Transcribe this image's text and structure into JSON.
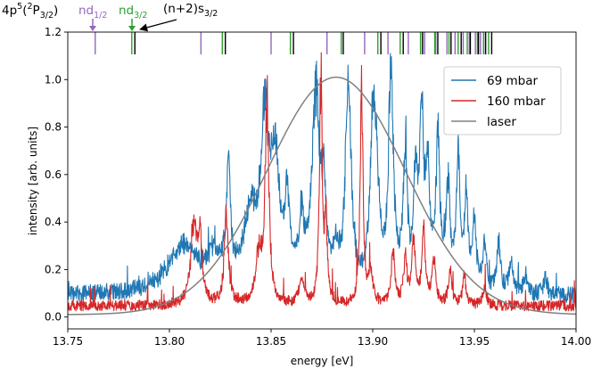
{
  "chart_data": {
    "type": "line",
    "title": "",
    "xlabel": "energy [eV]",
    "ylabel": "intensity [arb. units]",
    "xlim": [
      13.75,
      14.0
    ],
    "ylim": [
      -0.05,
      1.2
    ],
    "xticks": [
      "13.75",
      "13.80",
      "13.85",
      "13.90",
      "13.95",
      "14.00"
    ],
    "yticks": [
      "0.0",
      "0.2",
      "0.4",
      "0.6",
      "0.8",
      "1.0",
      "1.2"
    ],
    "legend_position": "top-right",
    "series": [
      {
        "name": "69 mbar",
        "color": "#1f77b4",
        "baseline": 0.08,
        "noise": 0.035,
        "peaks": [
          [
            13.807,
            0.2,
            0.009
          ],
          [
            13.822,
            0.12,
            0.004
          ],
          [
            13.829,
            0.47,
            0.0012
          ],
          [
            13.84,
            0.32,
            0.004
          ],
          [
            13.847,
            0.62,
            0.0022
          ],
          [
            13.852,
            0.5,
            0.0025
          ],
          [
            13.858,
            0.32,
            0.0015
          ],
          [
            13.865,
            0.25,
            0.0015
          ],
          [
            13.872,
            0.82,
            0.0022
          ],
          [
            13.876,
            0.32,
            0.0013
          ],
          [
            13.882,
            0.12,
            0.002
          ],
          [
            13.888,
            0.86,
            0.0016
          ],
          [
            13.9,
            0.65,
            0.0016
          ],
          [
            13.902,
            0.35,
            0.0015
          ],
          [
            13.909,
            0.92,
            0.0014
          ],
          [
            13.916,
            0.55,
            0.0012
          ],
          [
            13.921,
            0.38,
            0.0012
          ],
          [
            13.924,
            0.7,
            0.0013
          ],
          [
            13.927,
            0.42,
            0.0012
          ],
          [
            13.932,
            0.6,
            0.0012
          ],
          [
            13.937,
            0.42,
            0.0012
          ],
          [
            13.942,
            0.55,
            0.0011
          ],
          [
            13.946,
            0.36,
            0.0011
          ],
          [
            13.95,
            0.28,
            0.0011
          ],
          [
            13.955,
            0.2,
            0.0011
          ],
          [
            13.962,
            0.2,
            0.0011
          ],
          [
            13.968,
            0.12,
            0.0011
          ],
          [
            13.975,
            0.08,
            0.0011
          ],
          [
            13.985,
            0.06,
            0.0011
          ]
        ]
      },
      {
        "name": "160 mbar",
        "color": "#d62728",
        "baseline": 0.04,
        "noise": 0.022,
        "peaks": [
          [
            13.812,
            0.33,
            0.0018
          ],
          [
            13.815,
            0.25,
            0.0012
          ],
          [
            13.828,
            0.37,
            0.0012
          ],
          [
            13.844,
            0.2,
            0.002
          ],
          [
            13.848,
            0.82,
            0.0011
          ],
          [
            13.865,
            0.1,
            0.0015
          ],
          [
            13.8745,
            0.97,
            0.0008
          ],
          [
            13.877,
            0.3,
            0.0008
          ],
          [
            13.8945,
            0.96,
            0.0008
          ],
          [
            13.899,
            0.14,
            0.0012
          ],
          [
            13.91,
            0.23,
            0.001
          ],
          [
            13.916,
            0.18,
            0.001
          ],
          [
            13.92,
            0.28,
            0.001
          ],
          [
            13.925,
            0.32,
            0.001
          ],
          [
            13.93,
            0.2,
            0.001
          ],
          [
            13.938,
            0.14,
            0.001
          ],
          [
            13.945,
            0.12,
            0.001
          ],
          [
            13.955,
            0.08,
            0.001
          ]
        ]
      },
      {
        "name": "laser",
        "color": "#808080",
        "function": "gaussian",
        "center": 13.882,
        "amplitude": 1.0,
        "sigma": 0.034,
        "offset": 0.01
      }
    ],
    "top_markers": {
      "nd1_2": {
        "color": "#9467bd",
        "positions": [
          13.7635,
          13.8155,
          13.85,
          13.8775,
          13.896,
          13.9075,
          13.9175,
          13.9255,
          13.931,
          13.9365,
          13.9405,
          13.9445,
          13.9475,
          13.9505,
          13.953,
          13.9555
        ]
      },
      "nd3_2": {
        "color": "#2ca02c",
        "positions": [
          13.7815,
          13.826,
          13.8595,
          13.8845,
          13.9025,
          13.9135,
          13.9235,
          13.9305,
          13.9375,
          13.942,
          13.9465,
          13.9515,
          13.9545,
          13.957
        ]
      },
      "ns3_2": {
        "color": "#000000",
        "positions": [
          13.783,
          13.8275,
          13.861,
          13.8855,
          13.904,
          13.915,
          13.9245,
          13.932,
          13.9385,
          13.9435,
          13.948,
          13.952,
          13.9555,
          13.9585
        ]
      }
    },
    "annotations": {
      "edge_label": {
        "base": "4p",
        "sup1": "5",
        "open": "(",
        "sup2": "2",
        "term": "P",
        "sub": "3/2",
        "close": ")"
      },
      "nd12_label": {
        "base": "nd",
        "sub": "1/2"
      },
      "nd32_label": {
        "base": "nd",
        "sub": "3/2"
      },
      "ns_label": {
        "base": "(n+2)s",
        "sub": "3/2"
      }
    }
  }
}
